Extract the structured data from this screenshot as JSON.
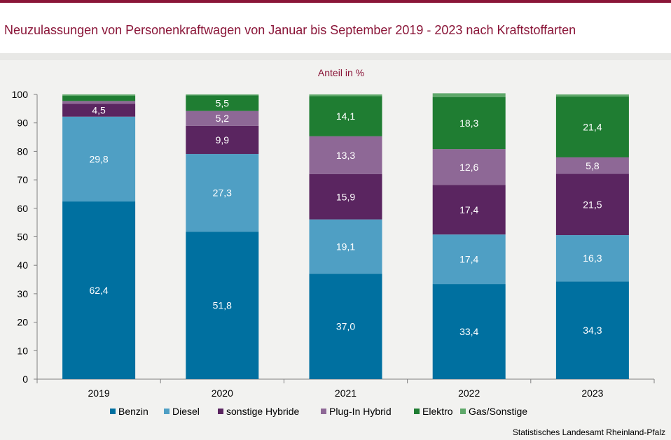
{
  "header": {
    "title": "Neuzulassungen von Personenkraftwagen von Januar bis September 2019 - 2023 nach Kraftstoffarten"
  },
  "source": "Statistisches Landesamt Rheinland-Pfalz",
  "colors": {
    "accent": "#8a1538",
    "Benzin": "#0070a0",
    "Diesel": "#4f9fc4",
    "sonstige Hybride": "#5a2560",
    "Plug-In Hybrid": "#8e6896",
    "Elektro": "#1f7d32",
    "Gas/Sonstige": "#5fa86a"
  },
  "chart_data": {
    "type": "bar",
    "stacked": true,
    "title": "",
    "ylabel": "Anteil in %",
    "xlabel": "",
    "ylim": [
      0,
      100
    ],
    "yticks": [
      0,
      10,
      20,
      30,
      40,
      50,
      60,
      70,
      80,
      90,
      100
    ],
    "categories": [
      "2019",
      "2020",
      "2021",
      "2022",
      "2023"
    ],
    "legend_position": "bottom",
    "grid": false,
    "series": [
      {
        "name": "Benzin",
        "values": [
          62.4,
          51.8,
          37.0,
          33.4,
          34.3
        ],
        "labels": [
          "62,4",
          "51,8",
          "37,0",
          "33,4",
          "34,3"
        ]
      },
      {
        "name": "Diesel",
        "values": [
          29.8,
          27.3,
          19.1,
          17.4,
          16.3
        ],
        "labels": [
          "29,8",
          "27,3",
          "19,1",
          "17,4",
          "16,3"
        ]
      },
      {
        "name": "sonstige Hybride",
        "values": [
          4.5,
          9.9,
          15.9,
          17.4,
          21.5
        ],
        "labels": [
          "4,5",
          "9,9",
          "15,9",
          "17,4",
          "21,5"
        ]
      },
      {
        "name": "Plug-In Hybrid",
        "values": [
          1.0,
          5.2,
          13.3,
          12.6,
          5.8
        ],
        "labels": [
          "",
          "5,2",
          "13,3",
          "12,6",
          "5,8"
        ]
      },
      {
        "name": "Elektro",
        "values": [
          1.8,
          5.5,
          14.1,
          18.3,
          21.4
        ],
        "labels": [
          "",
          "5,5",
          "14,1",
          "18,3",
          "21,4"
        ]
      },
      {
        "name": "Gas/Sonstige",
        "values": [
          0.5,
          0.3,
          0.6,
          1.3,
          0.7
        ],
        "labels": [
          "",
          "",
          "",
          "",
          ""
        ]
      }
    ]
  }
}
